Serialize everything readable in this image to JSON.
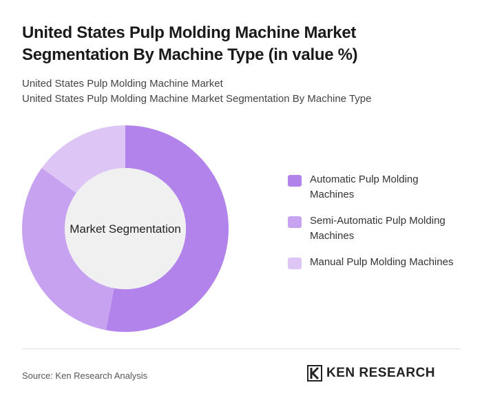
{
  "chart_data": {
    "type": "donut",
    "title": "United States Pulp Molding Machine Market Segmentation By Machine Type (in value %)",
    "subtitle": [
      "United States Pulp Molding Machine Market",
      "United States Pulp Molding Machine Market Segmentation By Machine Type"
    ],
    "center_label": "Market Segmentation",
    "categories": [
      "Automatic Pulp Molding Machines",
      "Semi-Automatic Pulp Molding Machines",
      "Manual Pulp Molding Machines"
    ],
    "values": [
      53,
      32,
      15
    ],
    "colors": [
      "#b383ec",
      "#c7a2f0",
      "#ddc6f6"
    ],
    "source": "Source: Ken Research Analysis",
    "brand": "KEN RESEARCH"
  }
}
